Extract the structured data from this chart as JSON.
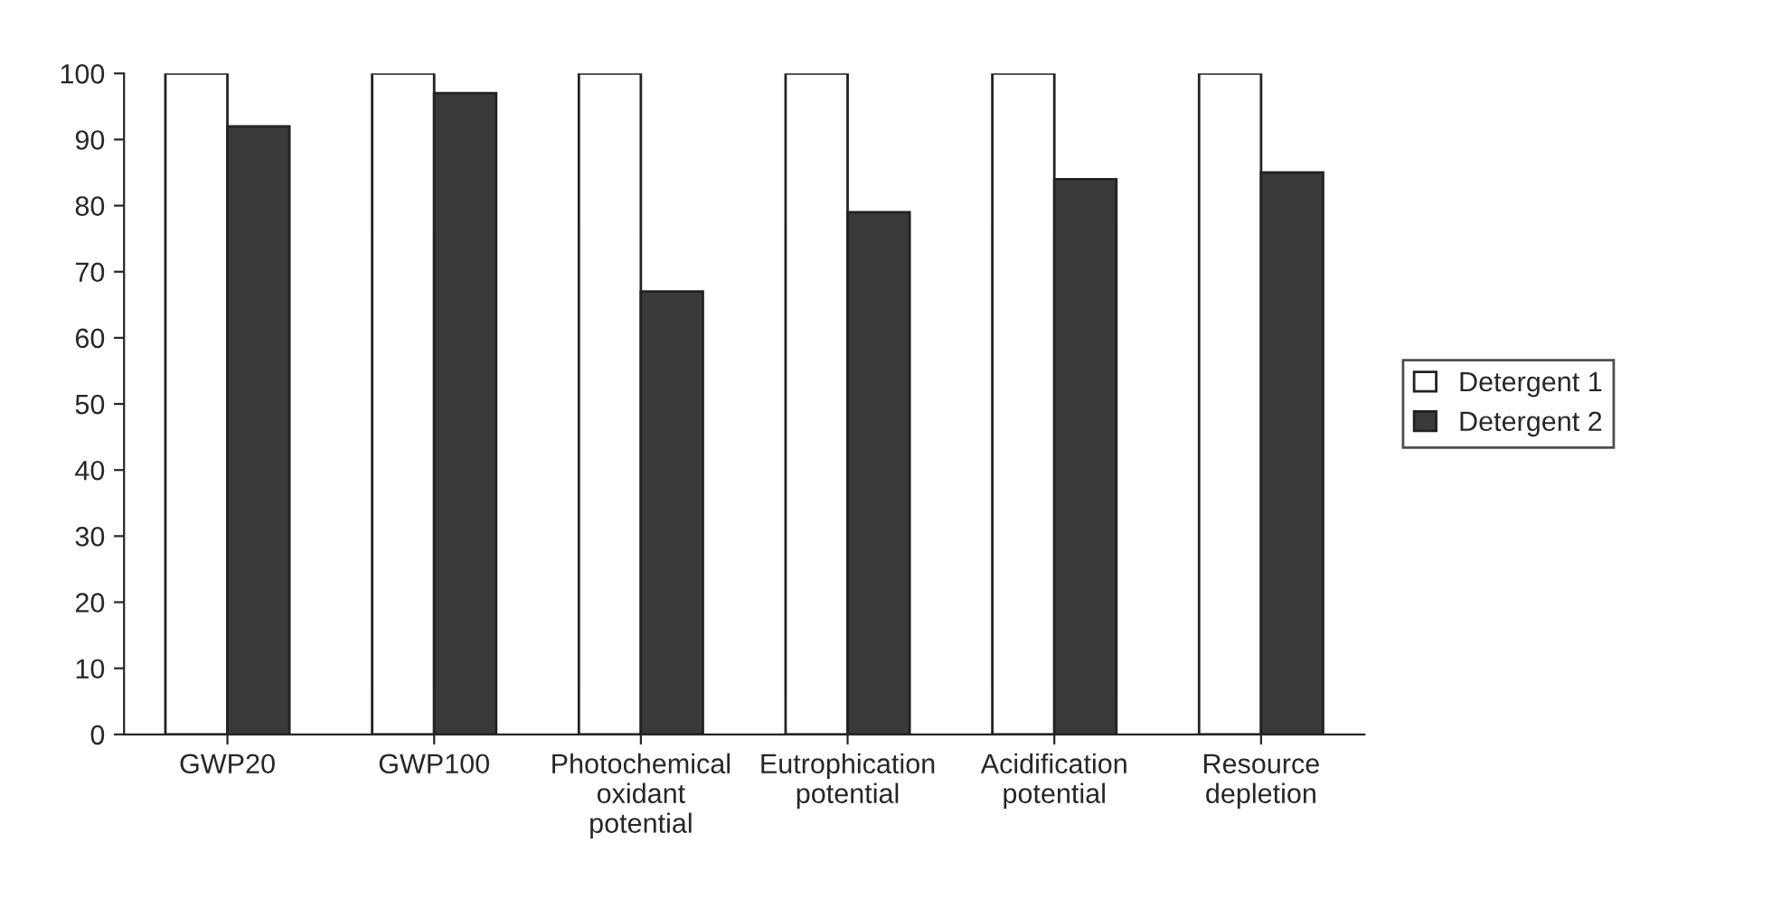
{
  "chart_data": {
    "type": "bar",
    "categories": [
      "GWP20",
      "GWP100",
      "Photochemical\noxidant\npotential",
      "Eutrophication\npotential",
      "Acidification\npotential",
      "Resource\ndepletion"
    ],
    "series": [
      {
        "name": "Detergent 1",
        "color": "#ffffff",
        "values": [
          100,
          100,
          100,
          100,
          100,
          100
        ]
      },
      {
        "name": "Detergent 2",
        "color": "#3a3a3a",
        "values": [
          92,
          97,
          67,
          79,
          84,
          85
        ]
      }
    ],
    "ylim": [
      0,
      100
    ],
    "yticks": [
      0,
      10,
      20,
      30,
      40,
      50,
      60,
      70,
      80,
      90,
      100
    ],
    "grid": false,
    "legend": "right"
  }
}
